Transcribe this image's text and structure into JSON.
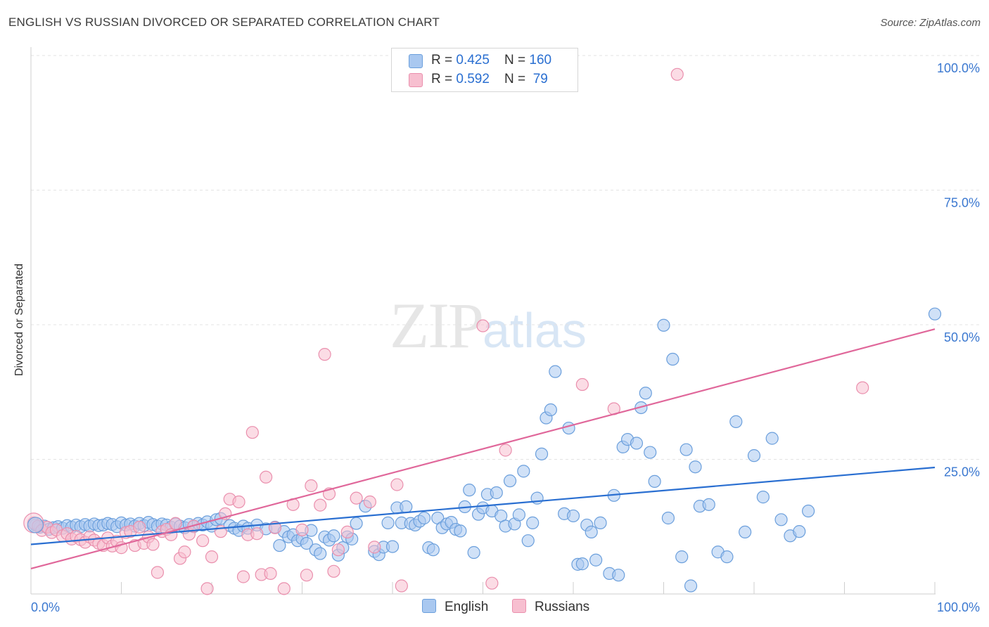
{
  "header": {
    "title": "ENGLISH VS RUSSIAN DIVORCED OR SEPARATED CORRELATION CHART",
    "source": "Source: ZipAtlas.com"
  },
  "watermark": {
    "zip": "ZIP",
    "atlas": "atlas"
  },
  "legend": {
    "english": {
      "r_label": "R = ",
      "r_value": "0.425",
      "n_label": "N = ",
      "n_value": "160"
    },
    "russians": {
      "r_label": "R = ",
      "r_value": "0.592",
      "n_label": "N = ",
      "n_value": " 79"
    },
    "bottom": [
      "English",
      "Russians"
    ]
  },
  "colors": {
    "english_fill": "#a9c8f0",
    "english_stroke": "#6b9fdc",
    "english_line": "#2a6fd1",
    "russian_fill": "#f7bfd0",
    "russian_stroke": "#ea8fad",
    "russian_line": "#e0679a",
    "tick_text": "#3b78d0",
    "grid": "#e3e3e3"
  },
  "chart_data": {
    "type": "scatter",
    "title": "ENGLISH VS RUSSIAN DIVORCED OR SEPARATED CORRELATION CHART",
    "xlabel": "",
    "ylabel": "Divorced or Separated",
    "xlim": [
      0,
      100
    ],
    "ylim": [
      0,
      100
    ],
    "x_tick_labels": [
      "0.0%",
      "100.0%"
    ],
    "y_ticks": [
      25,
      50,
      75,
      100
    ],
    "y_tick_labels": [
      "25.0%",
      "50.0%",
      "75.0%",
      "100.0%"
    ],
    "grid": true,
    "legend_position": "top-center",
    "series": [
      {
        "name": "English",
        "r": 0.425,
        "n": 160,
        "trend": {
          "x": [
            0,
            100
          ],
          "y": [
            9.2,
            23.5
          ]
        },
        "points": [
          [
            0.5,
            12.8
          ],
          [
            1,
            12.4
          ],
          [
            1.5,
            12.6
          ],
          [
            2,
            12.0
          ],
          [
            2.5,
            12.3
          ],
          [
            3,
            12.5
          ],
          [
            3.5,
            12.2
          ],
          [
            4,
            12.7
          ],
          [
            4.5,
            12.4
          ],
          [
            5,
            12.8
          ],
          [
            5.5,
            12.5
          ],
          [
            6,
            12.9
          ],
          [
            6.5,
            12.6
          ],
          [
            7,
            13.0
          ],
          [
            7.5,
            12.7
          ],
          [
            8,
            12.8
          ],
          [
            8.5,
            13.1
          ],
          [
            9,
            12.9
          ],
          [
            9.5,
            12.5
          ],
          [
            10,
            13.2
          ],
          [
            10.5,
            12.8
          ],
          [
            11,
            13.0
          ],
          [
            11.5,
            12.6
          ],
          [
            12,
            13.1
          ],
          [
            12.5,
            12.7
          ],
          [
            13,
            13.3
          ],
          [
            13.5,
            12.9
          ],
          [
            14,
            12.6
          ],
          [
            14.5,
            13.0
          ],
          [
            15,
            12.8
          ],
          [
            15.5,
            12.4
          ],
          [
            16,
            13.0
          ],
          [
            16.5,
            12.6
          ],
          [
            17,
            12.3
          ],
          [
            17.5,
            12.9
          ],
          [
            18,
            12.5
          ],
          [
            18.5,
            13.1
          ],
          [
            19,
            12.8
          ],
          [
            19.5,
            13.4
          ],
          [
            20,
            12.6
          ],
          [
            20.5,
            13.8
          ],
          [
            21,
            14.0
          ],
          [
            22,
            12.7
          ],
          [
            22.5,
            12.2
          ],
          [
            23,
            11.8
          ],
          [
            23.5,
            12.6
          ],
          [
            24,
            12.2
          ],
          [
            25,
            12.8
          ],
          [
            26,
            12.1
          ],
          [
            27,
            12.4
          ],
          [
            27.5,
            9.0
          ],
          [
            28,
            11.6
          ],
          [
            28.5,
            10.6
          ],
          [
            29,
            11.0
          ],
          [
            29.5,
            9.9
          ],
          [
            30,
            10.3
          ],
          [
            30.5,
            9.4
          ],
          [
            31,
            11.8
          ],
          [
            31.5,
            8.2
          ],
          [
            32,
            7.5
          ],
          [
            32.5,
            10.6
          ],
          [
            33,
            10.0
          ],
          [
            33.5,
            10.8
          ],
          [
            34,
            7.2
          ],
          [
            34.5,
            8.6
          ],
          [
            35,
            10.6
          ],
          [
            35.5,
            10.2
          ],
          [
            36,
            13.1
          ],
          [
            37,
            16.3
          ],
          [
            38,
            7.9
          ],
          [
            38.5,
            7.3
          ],
          [
            39,
            8.7
          ],
          [
            39.5,
            13.2
          ],
          [
            40,
            8.8
          ],
          [
            40.5,
            16.0
          ],
          [
            41,
            13.2
          ],
          [
            41.5,
            16.2
          ],
          [
            42,
            13.1
          ],
          [
            42.5,
            12.8
          ],
          [
            43,
            13.5
          ],
          [
            43.5,
            14.1
          ],
          [
            44,
            8.6
          ],
          [
            44.5,
            8.2
          ],
          [
            45,
            14.1
          ],
          [
            45.5,
            12.3
          ],
          [
            46,
            13.0
          ],
          [
            46.5,
            13.3
          ],
          [
            47,
            12.0
          ],
          [
            47.5,
            11.7
          ],
          [
            48,
            16.2
          ],
          [
            48.5,
            19.3
          ],
          [
            49,
            7.7
          ],
          [
            49.5,
            14.8
          ],
          [
            50,
            16.0
          ],
          [
            50.5,
            18.5
          ],
          [
            51,
            15.4
          ],
          [
            51.5,
            18.8
          ],
          [
            52,
            14.5
          ],
          [
            52.5,
            12.6
          ],
          [
            53,
            21.0
          ],
          [
            53.5,
            13.0
          ],
          [
            54,
            14.7
          ],
          [
            54.5,
            22.8
          ],
          [
            55,
            9.9
          ],
          [
            55.5,
            13.2
          ],
          [
            56,
            17.8
          ],
          [
            56.5,
            26.0
          ],
          [
            57,
            32.7
          ],
          [
            57.5,
            34.2
          ],
          [
            58,
            41.3
          ],
          [
            59,
            14.9
          ],
          [
            59.5,
            30.8
          ],
          [
            60,
            14.5
          ],
          [
            60.5,
            5.5
          ],
          [
            61,
            5.6
          ],
          [
            61.5,
            12.8
          ],
          [
            62,
            11.5
          ],
          [
            62.5,
            6.3
          ],
          [
            63,
            13.2
          ],
          [
            64,
            3.8
          ],
          [
            64.5,
            18.3
          ],
          [
            65,
            3.5
          ],
          [
            65.5,
            27.3
          ],
          [
            66,
            28.7
          ],
          [
            67,
            28.0
          ],
          [
            67.5,
            34.6
          ],
          [
            68,
            37.3
          ],
          [
            68.5,
            26.3
          ],
          [
            69,
            20.9
          ],
          [
            70,
            49.9
          ],
          [
            70.5,
            14.1
          ],
          [
            71,
            43.6
          ],
          [
            72,
            6.9
          ],
          [
            72.5,
            26.8
          ],
          [
            73,
            1.5
          ],
          [
            73.5,
            23.6
          ],
          [
            74,
            16.3
          ],
          [
            75,
            16.6
          ],
          [
            76,
            7.8
          ],
          [
            77,
            6.9
          ],
          [
            78,
            32.0
          ],
          [
            79,
            11.5
          ],
          [
            80,
            25.7
          ],
          [
            81,
            18.0
          ],
          [
            82,
            28.9
          ],
          [
            83,
            13.8
          ],
          [
            84,
            10.8
          ],
          [
            85,
            11.6
          ],
          [
            86,
            15.4
          ],
          [
            100,
            52.0
          ]
        ]
      },
      {
        "name": "Russians",
        "r": 0.592,
        "n": 79,
        "trend": {
          "x": [
            0,
            100
          ],
          "y": [
            4.7,
            49.2
          ]
        },
        "points": [
          [
            0.3,
            13.2
          ],
          [
            0.8,
            12.6
          ],
          [
            1.2,
            11.8
          ],
          [
            1.8,
            12.4
          ],
          [
            2.3,
            11.4
          ],
          [
            2.8,
            11.9
          ],
          [
            3.5,
            10.8
          ],
          [
            4,
            11.2
          ],
          [
            4.5,
            10.2
          ],
          [
            5,
            10.7
          ],
          [
            5.5,
            10.1
          ],
          [
            6,
            9.6
          ],
          [
            6.5,
            10.6
          ],
          [
            7,
            10.0
          ],
          [
            7.5,
            9.4
          ],
          [
            8,
            9.0
          ],
          [
            8.5,
            10.4
          ],
          [
            9,
            8.9
          ],
          [
            9.5,
            9.8
          ],
          [
            10,
            8.6
          ],
          [
            10.5,
            11.4
          ],
          [
            11,
            11.6
          ],
          [
            11.5,
            9.0
          ],
          [
            12,
            12.4
          ],
          [
            12.5,
            9.4
          ],
          [
            13,
            10.6
          ],
          [
            13.5,
            9.2
          ],
          [
            14,
            4.0
          ],
          [
            14.5,
            11.6
          ],
          [
            15,
            12.0
          ],
          [
            15.5,
            11.0
          ],
          [
            16,
            13.1
          ],
          [
            16.5,
            6.6
          ],
          [
            17,
            7.8
          ],
          [
            17.5,
            11.1
          ],
          [
            18,
            12.6
          ],
          [
            19,
            9.9
          ],
          [
            19.5,
            1.0
          ],
          [
            20,
            6.9
          ],
          [
            21,
            11.6
          ],
          [
            21.5,
            14.9
          ],
          [
            22,
            17.6
          ],
          [
            23,
            17.1
          ],
          [
            23.5,
            3.2
          ],
          [
            24,
            11.0
          ],
          [
            24.5,
            30.0
          ],
          [
            25,
            11.2
          ],
          [
            25.5,
            3.6
          ],
          [
            26,
            21.7
          ],
          [
            26.5,
            3.8
          ],
          [
            27,
            12.3
          ],
          [
            28,
            1.0
          ],
          [
            29,
            16.6
          ],
          [
            30,
            11.9
          ],
          [
            30.5,
            3.5
          ],
          [
            31,
            20.1
          ],
          [
            32,
            16.5
          ],
          [
            32.5,
            44.5
          ],
          [
            33,
            18.6
          ],
          [
            33.5,
            4.2
          ],
          [
            34,
            8.2
          ],
          [
            35,
            11.5
          ],
          [
            36,
            17.8
          ],
          [
            37.5,
            17.1
          ],
          [
            38,
            8.7
          ],
          [
            40.5,
            20.3
          ],
          [
            41,
            1.5
          ],
          [
            50,
            49.8
          ],
          [
            51,
            2.0
          ],
          [
            52.5,
            26.7
          ],
          [
            61,
            38.9
          ],
          [
            64.5,
            34.4
          ],
          [
            71.5,
            96.5
          ],
          [
            92,
            38.3
          ]
        ]
      }
    ]
  }
}
